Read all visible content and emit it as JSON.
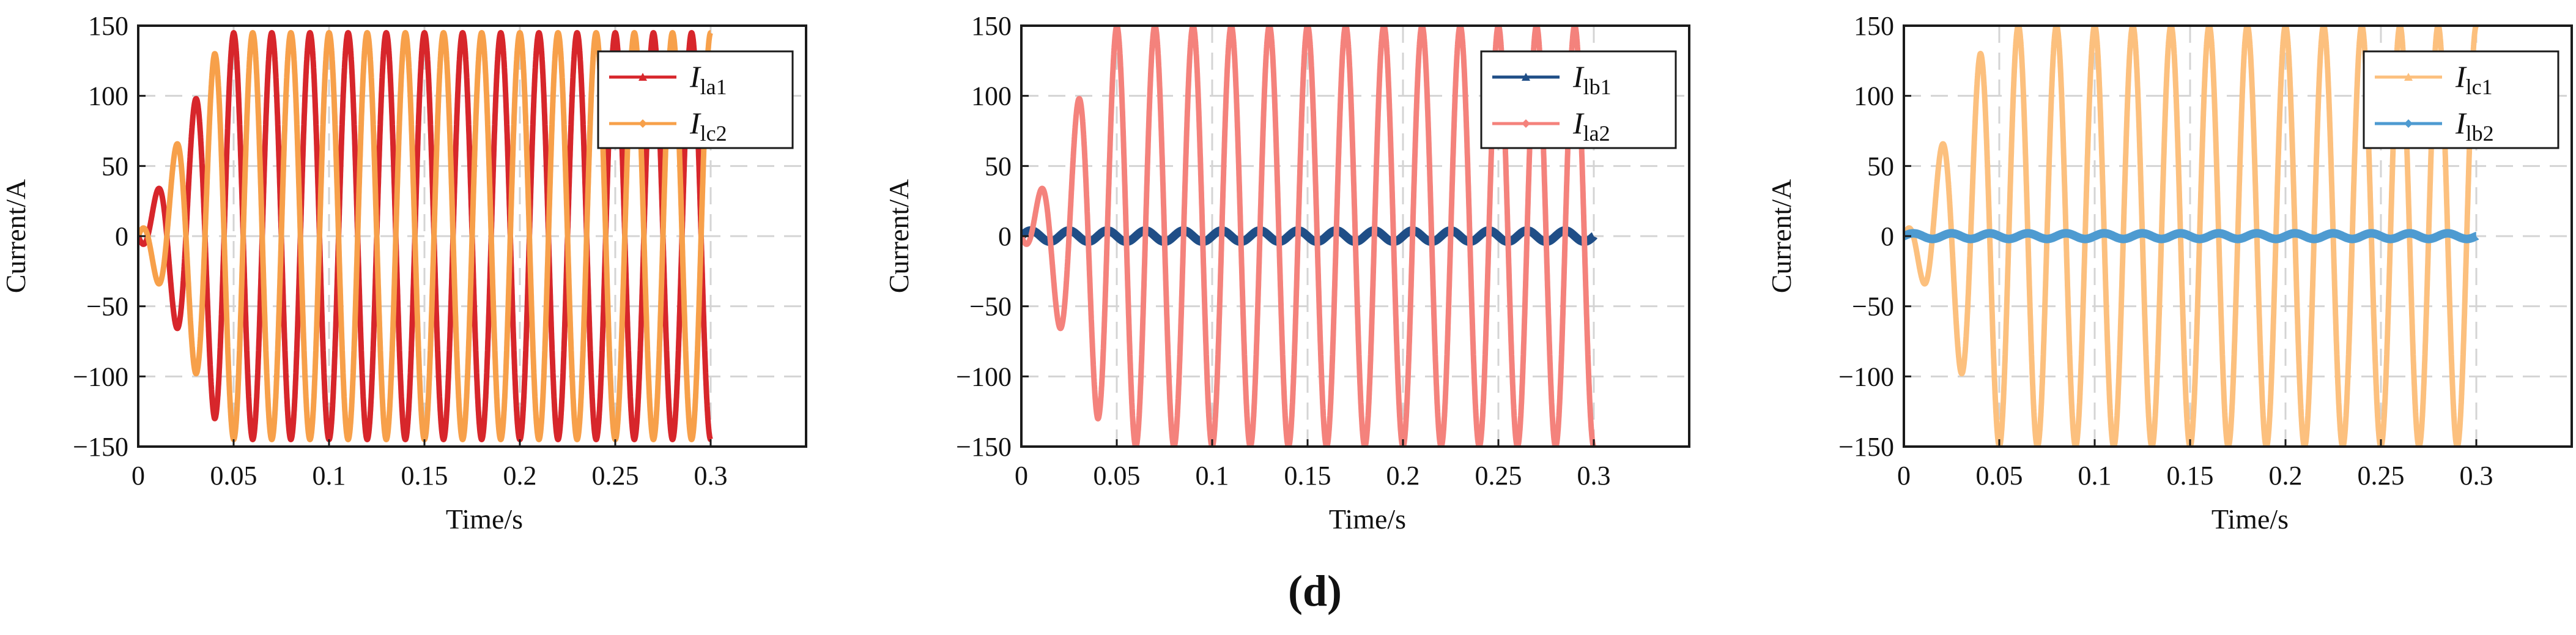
{
  "caption": "(d)",
  "chart_data": [
    {
      "type": "line",
      "xlabel": "Time/s",
      "ylabel": "Current/A",
      "xlim": [
        0,
        0.35
      ],
      "ylim": [
        -150,
        150
      ],
      "xticks": [
        0,
        0.05,
        0.1,
        0.15,
        0.2,
        0.25,
        0.3
      ],
      "xtick_labels": [
        "0",
        "0.05",
        "0.1",
        "0.15",
        "0.2",
        "0.25",
        "0.3"
      ],
      "yticks": [
        150,
        100,
        50,
        0,
        -50,
        -100,
        -150
      ],
      "ytick_labels": [
        "150",
        "100",
        "50",
        "0",
        "−50",
        "−100",
        "−150"
      ],
      "grid": "dashed",
      "legend_position": "top-right",
      "series": [
        {
          "name_main": "I",
          "name_sub": "la1",
          "color": "#D7262B",
          "marker": "triangle",
          "frequency_hz": 50,
          "amplitude": 145,
          "phase_deg": -90,
          "envelope": [
            [
              0,
              0
            ],
            [
              0.04,
              130
            ],
            [
              0.05,
              145
            ],
            [
              0.3,
              145
            ]
          ]
        },
        {
          "name_main": "I",
          "name_sub": "lc2",
          "color": "#F7A04A",
          "marker": "diamond",
          "frequency_hz": 50,
          "amplitude": 145,
          "phase_deg": 90,
          "envelope": [
            [
              0,
              0
            ],
            [
              0.04,
              130
            ],
            [
              0.05,
              145
            ],
            [
              0.3,
              145
            ]
          ]
        }
      ]
    },
    {
      "type": "line",
      "xlabel": "Time/s",
      "ylabel": "Current/A",
      "xlim": [
        0,
        0.35
      ],
      "ylim": [
        -150,
        150
      ],
      "xticks": [
        0,
        0.05,
        0.1,
        0.15,
        0.2,
        0.25,
        0.3
      ],
      "xtick_labels": [
        "0",
        "0.05",
        "0.1",
        "0.15",
        "0.2",
        "0.25",
        "0.3"
      ],
      "yticks": [
        150,
        100,
        50,
        0,
        -50,
        -100,
        -150
      ],
      "ytick_labels": [
        "150",
        "100",
        "50",
        "0",
        "−50",
        "−100",
        "−150"
      ],
      "grid": "dashed",
      "legend_position": "top-right",
      "series": [
        {
          "name_main": "I",
          "name_sub": "lb1",
          "color": "#1F4E87",
          "marker": "triangle",
          "frequency_hz": 50,
          "amplitude": 4,
          "phase_deg": 0,
          "envelope": [
            [
              0,
              4
            ],
            [
              0.3,
              4
            ]
          ]
        },
        {
          "name_main": "I",
          "name_sub": "la2",
          "color": "#F4827C",
          "marker": "diamond",
          "frequency_hz": 50,
          "amplitude": 150,
          "phase_deg": -90,
          "envelope": [
            [
              0,
              0
            ],
            [
              0.04,
              130
            ],
            [
              0.05,
              150
            ],
            [
              0.3,
              150
            ]
          ]
        }
      ]
    },
    {
      "type": "line",
      "xlabel": "Time/s",
      "ylabel": "Current/A",
      "xlim": [
        0,
        0.35
      ],
      "ylim": [
        -150,
        150
      ],
      "xticks": [
        0,
        0.05,
        0.1,
        0.15,
        0.2,
        0.25,
        0.3
      ],
      "xtick_labels": [
        "0",
        "0.05",
        "0.1",
        "0.15",
        "0.2",
        "0.25",
        "0.3"
      ],
      "yticks": [
        150,
        100,
        50,
        0,
        -50,
        -100,
        -150
      ],
      "ytick_labels": [
        "150",
        "100",
        "50",
        "0",
        "−50",
        "−100",
        "−150"
      ],
      "grid": "dashed",
      "legend_position": "top-right",
      "series": [
        {
          "name_main": "I",
          "name_sub": "lc1",
          "color": "#FCC07E",
          "marker": "triangle",
          "frequency_hz": 50,
          "amplitude": 150,
          "phase_deg": 90,
          "envelope": [
            [
              0,
              0
            ],
            [
              0.04,
              130
            ],
            [
              0.05,
              150
            ],
            [
              0.3,
              150
            ]
          ]
        },
        {
          "name_main": "I",
          "name_sub": "lb2",
          "color": "#4E9BD1",
          "marker": "diamond",
          "frequency_hz": 50,
          "amplitude": 2,
          "phase_deg": 0,
          "envelope": [
            [
              0,
              2
            ],
            [
              0.3,
              2
            ]
          ]
        }
      ]
    }
  ]
}
